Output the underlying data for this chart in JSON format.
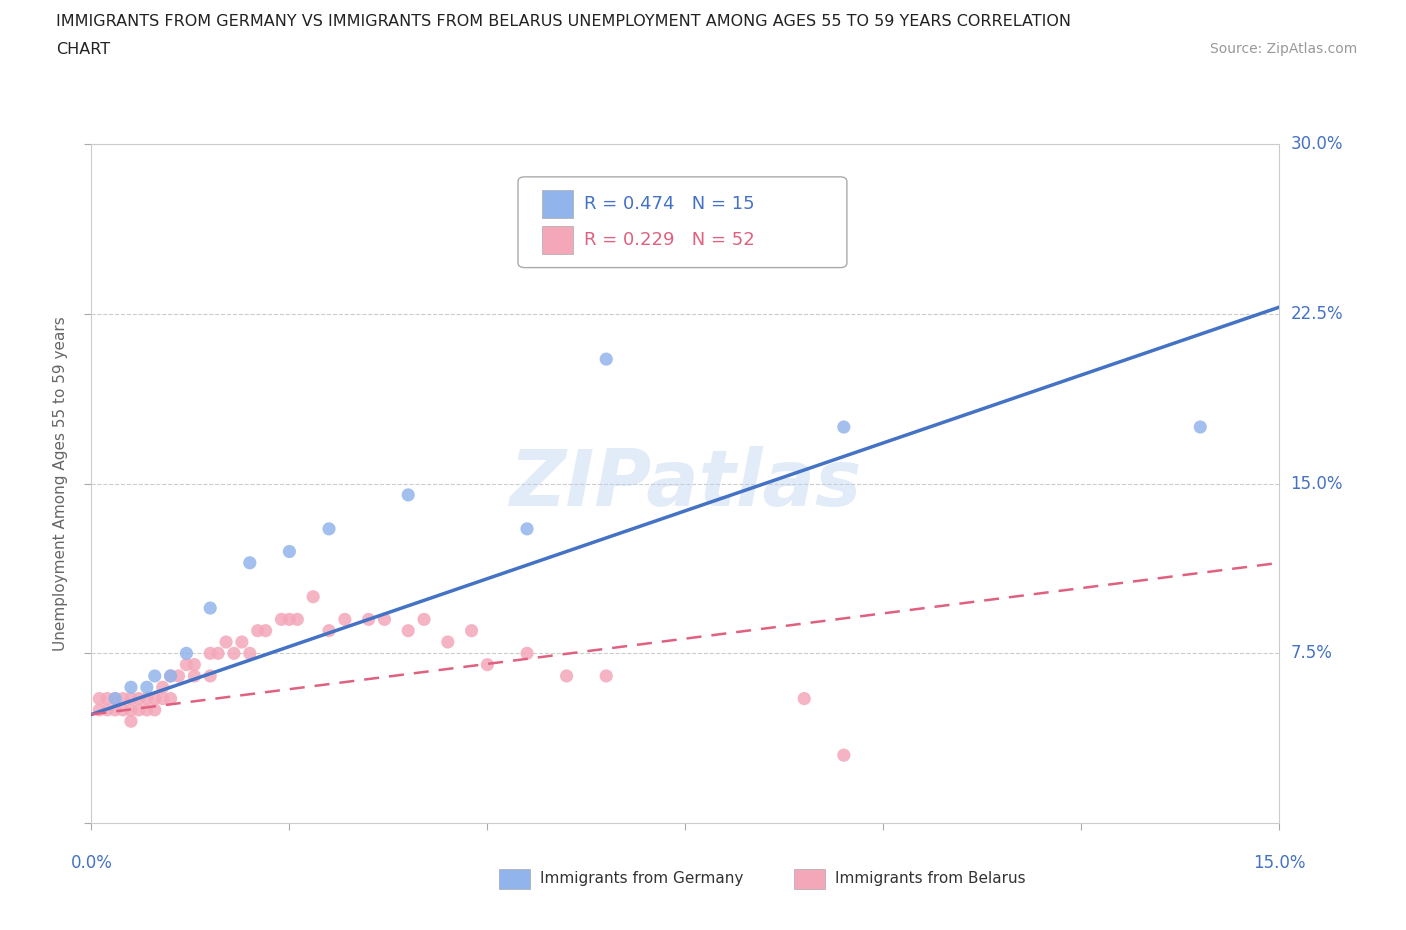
{
  "title_line1": "IMMIGRANTS FROM GERMANY VS IMMIGRANTS FROM BELARUS UNEMPLOYMENT AMONG AGES 55 TO 59 YEARS CORRELATION",
  "title_line2": "CHART",
  "source": "Source: ZipAtlas.com",
  "ylabel": "Unemployment Among Ages 55 to 59 years",
  "xlim": [
    0.0,
    0.15
  ],
  "ylim": [
    0.0,
    0.3
  ],
  "yticks": [
    0.0,
    0.075,
    0.15,
    0.225,
    0.3
  ],
  "ytick_labels": [
    "",
    "7.5%",
    "15.0%",
    "22.5%",
    "30.0%"
  ],
  "xticks": [
    0.0,
    0.025,
    0.05,
    0.075,
    0.1,
    0.125,
    0.15
  ],
  "germany_color": "#92b4ec",
  "belarus_color": "#f4a7b9",
  "germany_line_color": "#4472c4",
  "belarus_line_color": "#e06080",
  "legend_R_germany": "R = 0.474",
  "legend_N_germany": "N = 15",
  "legend_R_belarus": "R = 0.229",
  "legend_N_belarus": "N = 52",
  "watermark": "ZIPatlas",
  "germany_x": [
    0.003,
    0.005,
    0.007,
    0.008,
    0.01,
    0.012,
    0.015,
    0.02,
    0.025,
    0.03,
    0.04,
    0.055,
    0.065,
    0.095,
    0.14
  ],
  "germany_y": [
    0.055,
    0.06,
    0.06,
    0.065,
    0.065,
    0.075,
    0.095,
    0.115,
    0.12,
    0.13,
    0.145,
    0.13,
    0.205,
    0.175,
    0.175
  ],
  "belarus_x": [
    0.001,
    0.001,
    0.002,
    0.002,
    0.003,
    0.003,
    0.004,
    0.004,
    0.005,
    0.005,
    0.005,
    0.006,
    0.006,
    0.007,
    0.007,
    0.008,
    0.008,
    0.009,
    0.009,
    0.01,
    0.01,
    0.011,
    0.012,
    0.013,
    0.013,
    0.015,
    0.015,
    0.016,
    0.017,
    0.018,
    0.019,
    0.02,
    0.021,
    0.022,
    0.024,
    0.025,
    0.026,
    0.028,
    0.03,
    0.032,
    0.035,
    0.037,
    0.04,
    0.042,
    0.045,
    0.048,
    0.05,
    0.055,
    0.06,
    0.065,
    0.09,
    0.095
  ],
  "belarus_y": [
    0.05,
    0.055,
    0.05,
    0.055,
    0.05,
    0.055,
    0.05,
    0.055,
    0.045,
    0.05,
    0.055,
    0.05,
    0.055,
    0.05,
    0.055,
    0.05,
    0.055,
    0.055,
    0.06,
    0.055,
    0.065,
    0.065,
    0.07,
    0.065,
    0.07,
    0.065,
    0.075,
    0.075,
    0.08,
    0.075,
    0.08,
    0.075,
    0.085,
    0.085,
    0.09,
    0.09,
    0.09,
    0.1,
    0.085,
    0.09,
    0.09,
    0.09,
    0.085,
    0.09,
    0.08,
    0.085,
    0.07,
    0.075,
    0.065,
    0.065,
    0.055,
    0.03
  ],
  "germany_line_x": [
    0.0,
    0.15
  ],
  "germany_line_y": [
    0.048,
    0.228
  ],
  "belarus_line_x": [
    0.0,
    0.15
  ],
  "belarus_line_y": [
    0.048,
    0.115
  ]
}
